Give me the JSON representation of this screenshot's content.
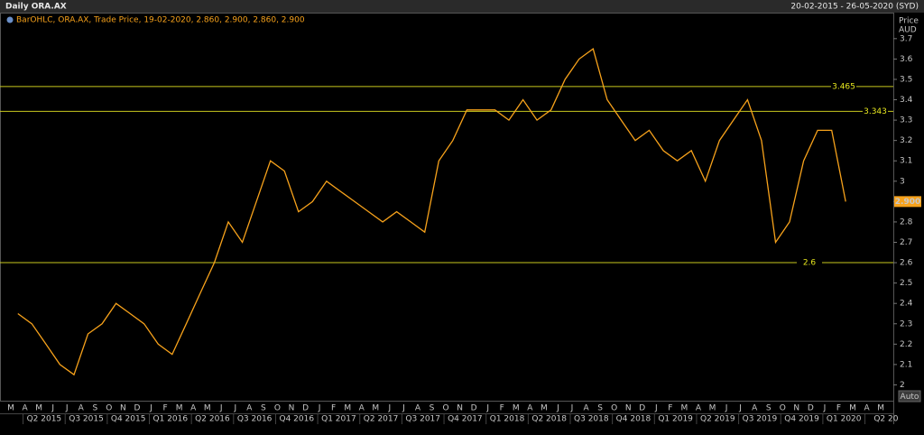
{
  "header": {
    "title": "Daily ORA.AX",
    "range": "20-02-2015 - 26-05-2020 (SYD)"
  },
  "legend_text": "BarOHLC, ORA.AX, Trade Price, 19-02-2020, 2.860, 2.900, 2.860, 2.900",
  "auto_button": "Auto",
  "chart_data": {
    "type": "line",
    "y_axis_title": "Price",
    "y_axis_unit": "AUD",
    "categories": [
      "M",
      "A",
      "M",
      "J",
      "J",
      "A",
      "S",
      "O",
      "N",
      "D",
      "J",
      "F",
      "M",
      "A",
      "M",
      "J",
      "J",
      "A",
      "S",
      "O",
      "N",
      "D",
      "J",
      "F",
      "M",
      "A",
      "M",
      "J",
      "J",
      "A",
      "S",
      "O",
      "N",
      "D",
      "J",
      "F",
      "M",
      "A",
      "M",
      "J",
      "J",
      "A",
      "S",
      "O",
      "N",
      "D",
      "J",
      "F",
      "M",
      "A",
      "M",
      "J",
      "J",
      "A",
      "S",
      "O",
      "N",
      "D",
      "J",
      "F",
      "M",
      "A",
      "M"
    ],
    "quarters": [
      "Q2 2015",
      "Q3 2015",
      "Q4 2015",
      "Q1 2016",
      "Q2 2016",
      "Q3 2016",
      "Q4 2016",
      "Q1 2017",
      "Q2 2017",
      "Q3 2017",
      "Q4 2017",
      "Q1 2018",
      "Q2 2018",
      "Q3 2018",
      "Q4 2018",
      "Q1 2019",
      "Q2 2019",
      "Q3 2019",
      "Q4 2019",
      "Q1 2020",
      "Q2 20"
    ],
    "series": [
      {
        "name": "Trade Price",
        "color": "#f7a21b",
        "values": [
          2.35,
          2.3,
          2.2,
          2.1,
          2.05,
          2.25,
          2.3,
          2.4,
          2.35,
          2.3,
          2.2,
          2.15,
          2.3,
          2.45,
          2.6,
          2.8,
          2.7,
          2.9,
          3.1,
          3.05,
          2.85,
          2.9,
          3.0,
          2.95,
          2.9,
          2.85,
          2.8,
          2.85,
          2.8,
          2.75,
          3.1,
          3.2,
          3.35,
          3.35,
          3.35,
          3.3,
          3.4,
          3.3,
          3.35,
          3.5,
          3.6,
          3.65,
          3.4,
          3.3,
          3.2,
          3.25,
          3.15,
          3.1,
          3.15,
          3.0,
          3.2,
          3.3,
          3.4,
          3.2,
          2.7,
          2.8,
          3.1,
          3.25,
          3.25,
          2.9,
          null,
          null,
          null
        ]
      }
    ],
    "ylim": [
      1.94,
      3.81
    ],
    "yticks": [
      2,
      2.1,
      2.2,
      2.3,
      2.4,
      2.5,
      2.6,
      2.7,
      2.8,
      2.9,
      3,
      3.1,
      3.2,
      3.3,
      3.4,
      3.5,
      3.6,
      3.7
    ],
    "hlines": [
      3.465,
      3.343,
      2.6
    ],
    "hline_color": "#c8c81e",
    "last_price": {
      "value": 2.9,
      "label": "2.900"
    },
    "grid": false
  }
}
